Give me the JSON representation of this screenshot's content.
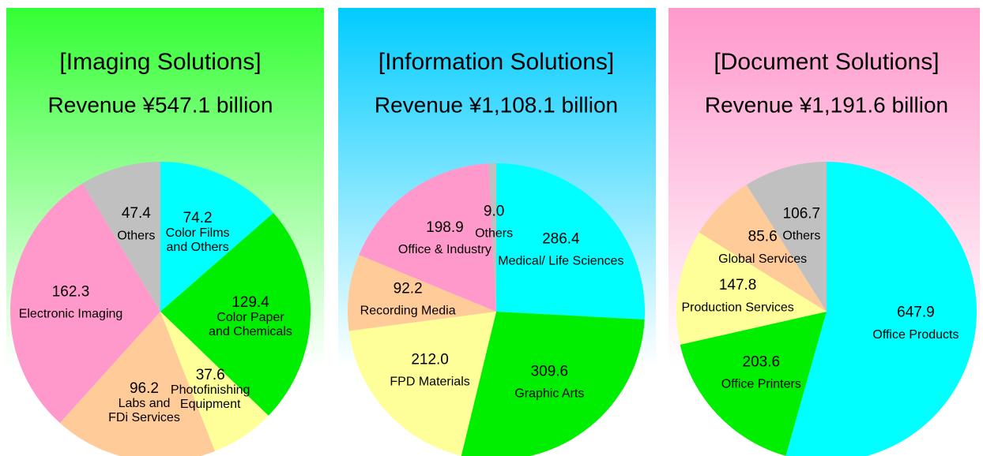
{
  "chart_data": [
    {
      "type": "pie",
      "title": "[Imaging Solutions]",
      "subtitle": "Revenue  ¥547.1 billion",
      "categories": [
        "Color Films\nand Others",
        "Color Paper\nand Chemicals",
        "Photofinishing\nEquipment",
        "Labs and\nFDi Services",
        "Electronic Imaging",
        "Others"
      ],
      "values": [
        74.2,
        129.4,
        37.6,
        96.2,
        162.3,
        47.4
      ],
      "value_labels": [
        "74.2",
        "129.4",
        "37.6",
        "96.2",
        "162.3",
        "47.4"
      ],
      "colors": [
        "#00ffff",
        "#00ee00",
        "#ffff99",
        "#ffcc99",
        "#ff99cc",
        "#c0c0c0"
      ]
    },
    {
      "type": "pie",
      "title": "[Information Solutions]",
      "subtitle": "Revenue  ¥1,108.1 billion",
      "categories": [
        "Medical/ Life Sciences",
        "Graphic Arts",
        "FPD Materials",
        "Recording Media",
        "Office & Industry",
        "Others"
      ],
      "values": [
        286.4,
        309.6,
        212.0,
        92.2,
        198.9,
        9.0
      ],
      "value_labels": [
        "286.4",
        "309.6",
        "212.0",
        "92.2",
        "198.9",
        "9.0"
      ],
      "colors": [
        "#00ffff",
        "#00ee00",
        "#ffff99",
        "#ffcc99",
        "#ff99cc",
        "#c0c0c0"
      ]
    },
    {
      "type": "pie",
      "title": "[Document Solutions]",
      "subtitle": "Revenue  ¥1,191.6 billion",
      "categories": [
        "Office Products",
        "Office Printers",
        "Production Services",
        "Global Services",
        "Others"
      ],
      "values": [
        647.9,
        203.6,
        147.8,
        85.6,
        106.7
      ],
      "value_labels": [
        "647.9",
        "203.6",
        "147.8",
        "85.6",
        "106.7"
      ],
      "colors": [
        "#00ffff",
        "#00ee00",
        "#ffff99",
        "#ffcc99",
        "#c0c0c0"
      ]
    }
  ]
}
